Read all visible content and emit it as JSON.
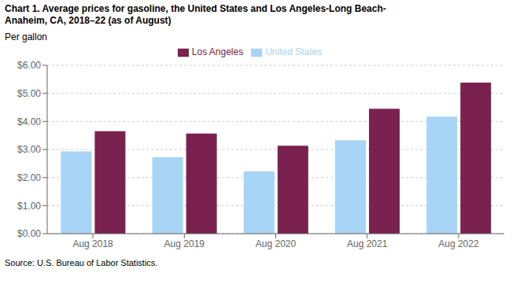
{
  "chart_data": {
    "type": "bar",
    "title": "Chart 1. Average prices for gasoline, the United States and Los Angeles-Long Beach-\nAnaheim, CA, 2018–22 (as of August)",
    "y_label": "Per gallon",
    "annotations": [
      "Source: U.S. Bureau of Labor Statistics."
    ],
    "categories": [
      "Aug 2018",
      "Aug 2019",
      "Aug 2020",
      "Aug 2021",
      "Aug 2022"
    ],
    "series": [
      {
        "name": "United States",
        "color": "#a8d4f5",
        "values": [
          2.93,
          2.73,
          2.22,
          3.33,
          4.17
        ]
      },
      {
        "name": "Los Angeles",
        "color": "#7b2150",
        "values": [
          3.65,
          3.57,
          3.13,
          4.45,
          5.38
        ]
      }
    ],
    "ylim": [
      0,
      6.0
    ],
    "yticks": [
      {
        "value": 0.0,
        "label": "$0.00"
      },
      {
        "value": 1.0,
        "label": "$1.00"
      },
      {
        "value": 2.0,
        "label": "$2.00"
      },
      {
        "value": 3.0,
        "label": "$3.00"
      },
      {
        "value": 4.0,
        "label": "$4.00"
      },
      {
        "value": 5.0,
        "label": "$5.00"
      },
      {
        "value": 6.0,
        "label": "$6.00"
      }
    ],
    "grid": true,
    "legend": "top"
  }
}
